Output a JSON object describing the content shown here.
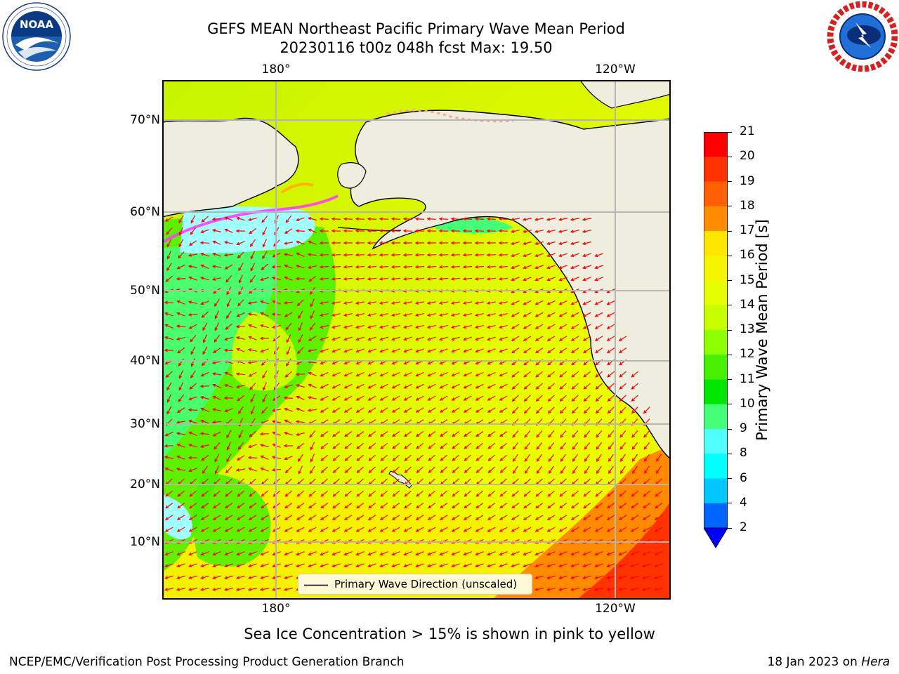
{
  "title": {
    "line1": "GEFS MEAN Northeast Pacific Primary Wave Mean Period",
    "line2": "20230116 t00z 048h fcst   Max: 19.50"
  },
  "logos": {
    "left": "NOAA",
    "left_ring": "NATIONAL OCEANIC AND ATMOSPHERIC ADMINISTRATION · U.S. DEPARTMENT OF COMMERCE",
    "right_ring": "NATIONAL WEATHER SERVICE"
  },
  "map": {
    "lat_labels": [
      "70°N",
      "60°N",
      "50°N",
      "40°N",
      "30°N",
      "20°N",
      "10°N"
    ],
    "lon_labels_top": [
      "180°",
      "120°W"
    ],
    "lon_labels_bottom": [
      "180°",
      "120°W"
    ],
    "legend_text": "Primary Wave Direction (unscaled)",
    "vector_color": "#ff0000",
    "land_color": "#efedde"
  },
  "colorbar": {
    "label": "Primary Wave Mean Period [s]",
    "ticks": [
      "21",
      "20",
      "19",
      "18",
      "17",
      "16",
      "15",
      "14",
      "13",
      "12",
      "11",
      "10",
      "9",
      "8",
      "6",
      "4",
      "2"
    ],
    "colors": [
      "#ff0000",
      "#ff3300",
      "#ff5f00",
      "#ff8c00",
      "#ffb400",
      "#ffe600",
      "#f5f500",
      "#e6ff00",
      "#c8ff00",
      "#8cff00",
      "#46f000",
      "#00e600",
      "#46ff78",
      "#a0ffff",
      "#50ffff",
      "#00ffff",
      "#00c8ff",
      "#0064ff",
      "#0000ff"
    ]
  },
  "note": "Sea Ice Concentration > 15% is shown in pink to yellow",
  "footer": {
    "left": "NCEP/EMC/Verification Post Processing Product Generation Branch",
    "right_date": "18 Jan 2023 on ",
    "right_machine": "Hera"
  }
}
